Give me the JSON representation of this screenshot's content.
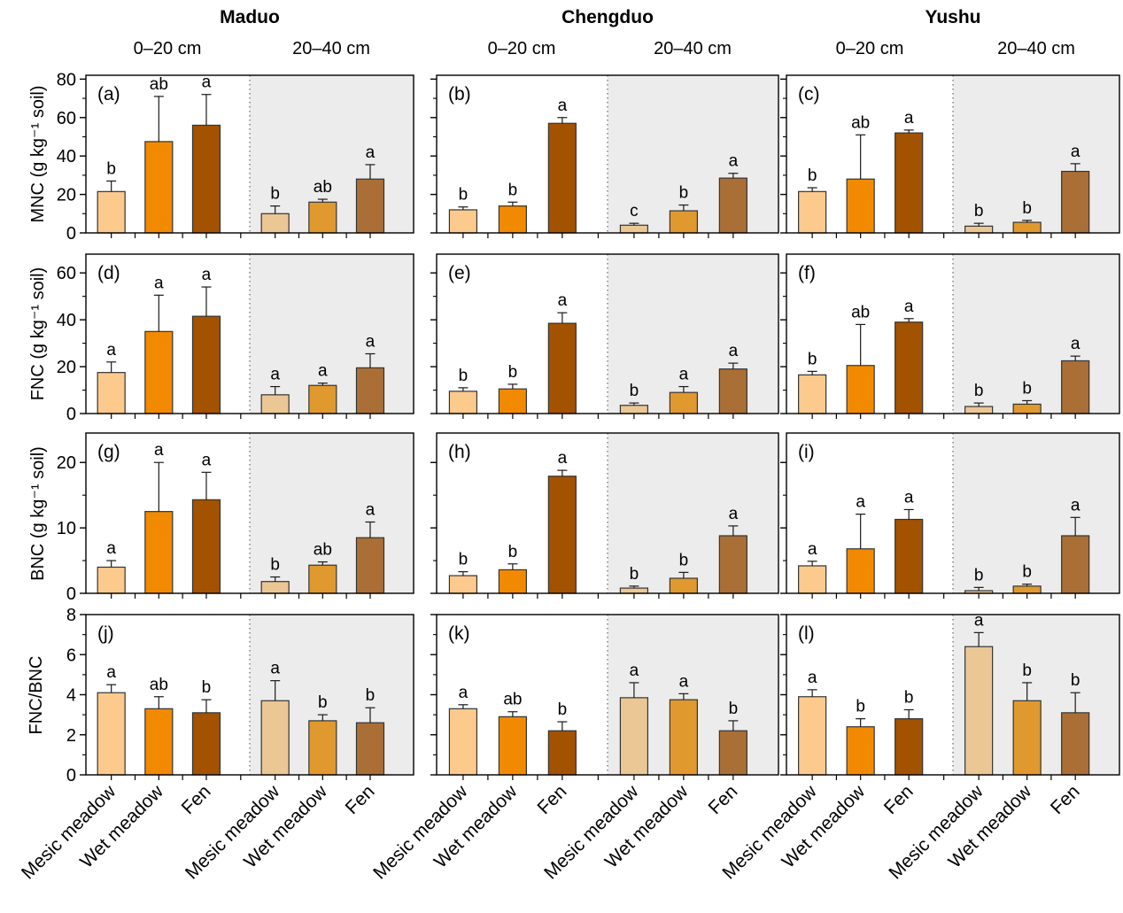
{
  "chart_data": {
    "type": "bar",
    "description": "Grouped bar panels with error bars and significance letters",
    "locations": [
      "Maduo",
      "Chengduo",
      "Yushu"
    ],
    "depths": [
      "0–20 cm",
      "20–40 cm"
    ],
    "categories": [
      "Mesic meadow",
      "Wet meadow",
      "Fen"
    ],
    "colors": {
      "depth_palettes": [
        [
          "#FDCA8D",
          "#F18A00",
          "#A35200"
        ],
        [
          "#EBC795",
          "#E0992F",
          "#AA6F36"
        ]
      ],
      "shaded_bg": "#ECECEC",
      "bar_edge": "#333333",
      "axis": "#000000"
    },
    "rows": [
      {
        "ylabel": "MNC (g kg⁻¹ soil)",
        "ylim": [
          0,
          82
        ],
        "yticks": [
          0,
          20,
          40,
          60,
          80
        ],
        "yticks_minor": [
          10,
          30,
          50,
          70
        ]
      },
      {
        "ylabel": "FNC (g kg⁻¹ soil)",
        "ylim": [
          0,
          68
        ],
        "yticks": [
          0,
          20,
          40,
          60
        ],
        "yticks_minor": [
          10,
          30,
          50
        ]
      },
      {
        "ylabel": "BNC (g kg⁻¹ soil)",
        "ylim": [
          0,
          24.5
        ],
        "yticks": [
          0,
          10,
          20
        ],
        "yticks_minor": [
          5,
          15
        ]
      },
      {
        "ylabel": "FNC/BNC",
        "ylim": [
          0,
          8
        ],
        "yticks": [
          0,
          2,
          4,
          6,
          8
        ],
        "yticks_minor": [
          1,
          3,
          5,
          7
        ]
      }
    ],
    "panels": [
      {
        "id": "a",
        "label": "(a)",
        "row": 0,
        "col": 0,
        "groups": [
          {
            "depth": "0–20 cm",
            "values": [
              21.5,
              47.5,
              56
            ],
            "errors": [
              5.5,
              23.5,
              16
            ],
            "letters": [
              "b",
              "ab",
              "a"
            ]
          },
          {
            "depth": "20–40 cm",
            "values": [
              10,
              16,
              28
            ],
            "errors": [
              4,
              1.5,
              7.5
            ],
            "letters": [
              "b",
              "ab",
              "a"
            ]
          }
        ]
      },
      {
        "id": "b",
        "label": "(b)",
        "row": 0,
        "col": 1,
        "groups": [
          {
            "depth": "0–20 cm",
            "values": [
              12,
              14,
              57
            ],
            "errors": [
              1.5,
              2,
              3
            ],
            "letters": [
              "b",
              "b",
              "a"
            ]
          },
          {
            "depth": "20–40 cm",
            "values": [
              4,
              11.5,
              28.5
            ],
            "errors": [
              1,
              3,
              2.5
            ],
            "letters": [
              "c",
              "b",
              "a"
            ]
          }
        ]
      },
      {
        "id": "c",
        "label": "(c)",
        "row": 0,
        "col": 2,
        "groups": [
          {
            "depth": "0–20 cm",
            "values": [
              21.5,
              28,
              52
            ],
            "errors": [
              2,
              23,
              1.5
            ],
            "letters": [
              "b",
              "ab",
              "a"
            ]
          },
          {
            "depth": "20–40 cm",
            "values": [
              3.5,
              5.5,
              32
            ],
            "errors": [
              1.5,
              1,
              4
            ],
            "letters": [
              "b",
              "b",
              "a"
            ]
          }
        ]
      },
      {
        "id": "d",
        "label": "(d)",
        "row": 1,
        "col": 0,
        "groups": [
          {
            "depth": "0–20 cm",
            "values": [
              17.5,
              35,
              41.5
            ],
            "errors": [
              4.5,
              15.5,
              12.5
            ],
            "letters": [
              "a",
              "a",
              "a"
            ]
          },
          {
            "depth": "20–40 cm",
            "values": [
              8,
              12,
              19.5
            ],
            "errors": [
              3.5,
              1,
              6
            ],
            "letters": [
              "a",
              "a",
              "a"
            ]
          }
        ]
      },
      {
        "id": "e",
        "label": "(e)",
        "row": 1,
        "col": 1,
        "groups": [
          {
            "depth": "0–20 cm",
            "values": [
              9.5,
              10.5,
              38.5
            ],
            "errors": [
              1.5,
              2,
              4.5
            ],
            "letters": [
              "b",
              "b",
              "a"
            ]
          },
          {
            "depth": "20–40 cm",
            "values": [
              3.5,
              9,
              19
            ],
            "errors": [
              1,
              2.5,
              2.5
            ],
            "letters": [
              "b",
              "a",
              "a"
            ]
          }
        ]
      },
      {
        "id": "f",
        "label": "(f)",
        "row": 1,
        "col": 2,
        "groups": [
          {
            "depth": "0–20 cm",
            "values": [
              16.5,
              20.5,
              39
            ],
            "errors": [
              1.5,
              17.5,
              1.5
            ],
            "letters": [
              "b",
              "ab",
              "a"
            ]
          },
          {
            "depth": "20–40 cm",
            "values": [
              3,
              4,
              22.5
            ],
            "errors": [
              1.5,
              1.5,
              2
            ],
            "letters": [
              "b",
              "b",
              "a"
            ]
          }
        ]
      },
      {
        "id": "g",
        "label": "(g)",
        "row": 2,
        "col": 0,
        "groups": [
          {
            "depth": "0–20 cm",
            "values": [
              4,
              12.5,
              14.3
            ],
            "errors": [
              1,
              7.5,
              4.2
            ],
            "letters": [
              "a",
              "a",
              "a"
            ]
          },
          {
            "depth": "20–40 cm",
            "values": [
              1.8,
              4.3,
              8.5
            ],
            "errors": [
              0.7,
              0.5,
              2.4
            ],
            "letters": [
              "b",
              "ab",
              "a"
            ]
          }
        ]
      },
      {
        "id": "h",
        "label": "(h)",
        "row": 2,
        "col": 1,
        "groups": [
          {
            "depth": "0–20 cm",
            "values": [
              2.7,
              3.6,
              17.9
            ],
            "errors": [
              0.6,
              0.9,
              0.9
            ],
            "letters": [
              "b",
              "b",
              "a"
            ]
          },
          {
            "depth": "20–40 cm",
            "values": [
              0.8,
              2.3,
              8.8
            ],
            "errors": [
              0.3,
              0.9,
              1.5
            ],
            "letters": [
              "b",
              "b",
              "a"
            ]
          }
        ]
      },
      {
        "id": "i",
        "label": "(i)",
        "row": 2,
        "col": 2,
        "groups": [
          {
            "depth": "0–20 cm",
            "values": [
              4.2,
              6.8,
              11.3
            ],
            "errors": [
              0.7,
              5.3,
              1.5
            ],
            "letters": [
              "a",
              "a",
              "a"
            ]
          },
          {
            "depth": "20–40 cm",
            "values": [
              0.4,
              1.1,
              8.8
            ],
            "errors": [
              0.5,
              0.3,
              2.8
            ],
            "letters": [
              "b",
              "b",
              "a"
            ]
          }
        ]
      },
      {
        "id": "j",
        "label": "(j)",
        "row": 3,
        "col": 0,
        "groups": [
          {
            "depth": "0–20 cm",
            "values": [
              4.1,
              3.3,
              3.1
            ],
            "errors": [
              0.4,
              0.6,
              0.65
            ],
            "letters": [
              "a",
              "ab",
              "b"
            ]
          },
          {
            "depth": "20–40 cm",
            "values": [
              3.7,
              2.7,
              2.6
            ],
            "errors": [
              1.0,
              0.3,
              0.75
            ],
            "letters": [
              "a",
              "b",
              "b"
            ]
          }
        ]
      },
      {
        "id": "k",
        "label": "(k)",
        "row": 3,
        "col": 1,
        "groups": [
          {
            "depth": "0–20 cm",
            "values": [
              3.3,
              2.9,
              2.2
            ],
            "errors": [
              0.2,
              0.25,
              0.45
            ],
            "letters": [
              "a",
              "ab",
              "b"
            ]
          },
          {
            "depth": "20–40 cm",
            "values": [
              3.85,
              3.75,
              2.2
            ],
            "errors": [
              0.75,
              0.3,
              0.5
            ],
            "letters": [
              "a",
              "a",
              "b"
            ]
          }
        ]
      },
      {
        "id": "l",
        "label": "(l)",
        "row": 3,
        "col": 2,
        "groups": [
          {
            "depth": "0–20 cm",
            "values": [
              3.9,
              2.4,
              2.8
            ],
            "errors": [
              0.35,
              0.4,
              0.45
            ],
            "letters": [
              "a",
              "b",
              "b"
            ]
          },
          {
            "depth": "20–40 cm",
            "values": [
              6.4,
              3.7,
              3.1
            ],
            "errors": [
              0.7,
              0.9,
              1.0
            ],
            "letters": [
              "a",
              "b",
              "b"
            ]
          }
        ]
      }
    ]
  }
}
